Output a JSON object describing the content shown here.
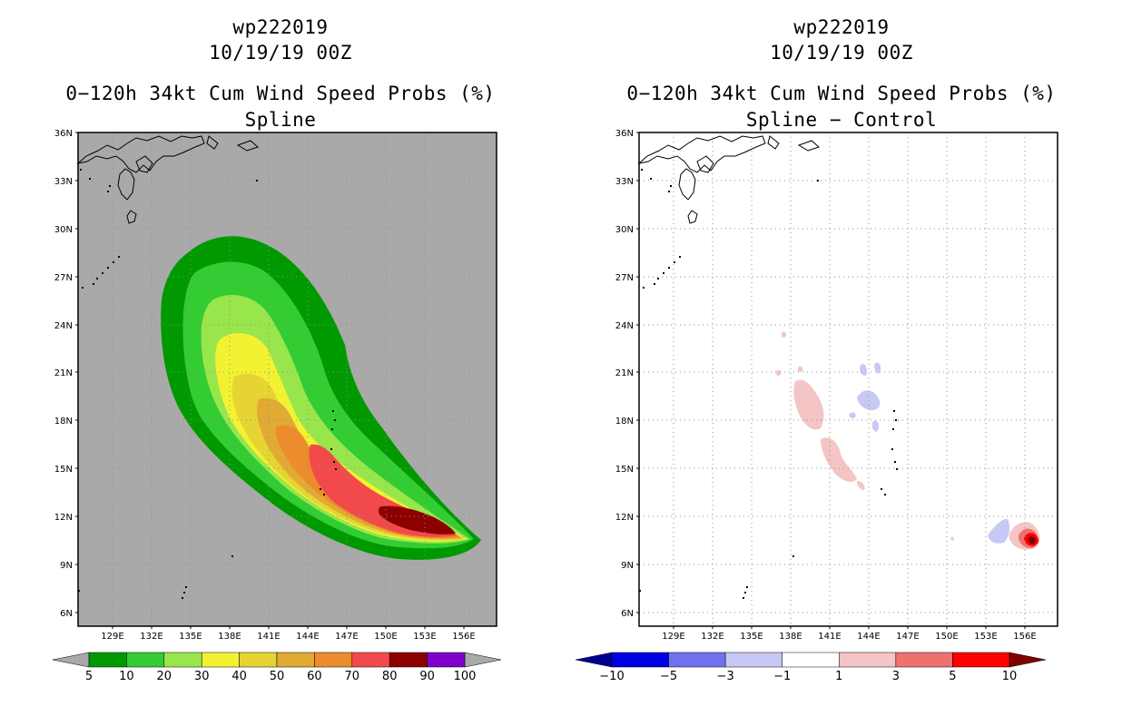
{
  "panels": [
    {
      "id": "left",
      "storm": "wp222019",
      "date": "10/19/19 00Z",
      "product": "0−120h 34kt Cum Wind Speed Probs (%)",
      "subtitle": "Spline",
      "background": "#a9a9a9",
      "colorbar": {
        "labels": [
          "5",
          "10",
          "20",
          "30",
          "40",
          "50",
          "60",
          "70",
          "80",
          "90",
          "100"
        ],
        "colors": [
          "#009900",
          "#33cc33",
          "#99e64c",
          "#f2f233",
          "#e6d433",
          "#e0aa33",
          "#ec8c2c",
          "#f24a4a",
          "#8c0000",
          "#7f00cc"
        ],
        "left_arrow": "#a9a9a9",
        "right_arrow": "#a9a9a9"
      }
    },
    {
      "id": "right",
      "storm": "wp222019",
      "date": "10/19/19 00Z",
      "product": "0−120h 34kt Cum Wind Speed Probs (%)",
      "subtitle": "Spline − Control",
      "background": "#ffffff",
      "colorbar": {
        "labels": [
          "−10",
          "−5",
          "−3",
          "−1",
          "1",
          "3",
          "5",
          "10"
        ],
        "colors": [
          "#0000e6",
          "#7070f0",
          "#c8c8f5",
          "#ffffff",
          "#f5c4c4",
          "#f07070",
          "#ff0000"
        ],
        "left_arrow": "#000090",
        "right_arrow": "#800000"
      }
    }
  ],
  "map": {
    "lat_labels": [
      "36N",
      "33N",
      "30N",
      "27N",
      "24N",
      "21N",
      "18N",
      "15N",
      "12N",
      "9N",
      "6N"
    ],
    "lon_labels": [
      "129E",
      "132E",
      "135E",
      "138E",
      "141E",
      "144E",
      "147E",
      "150E",
      "153E",
      "156E"
    ]
  },
  "colors": {
    "grid": "#8f8f8f",
    "coast": "#000000"
  }
}
